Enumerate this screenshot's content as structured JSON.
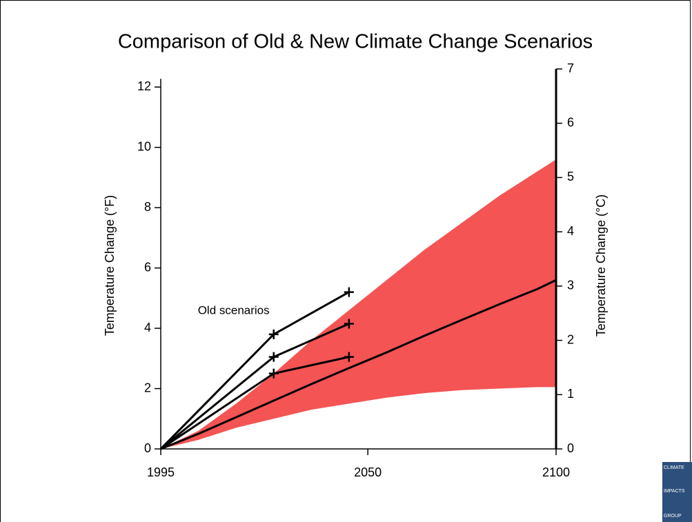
{
  "chart_data": {
    "type": "line",
    "title": "Comparison of Old & New Climate Change Scenarios",
    "y_label": "Temperature Change (°F)",
    "y2_label": "Temperature Change (°C)",
    "xlim": [
      1995,
      2100
    ],
    "xticks": [
      1995,
      2050,
      2100
    ],
    "ylim": [
      0,
      12.6
    ],
    "yticks": [
      0,
      2,
      4,
      6,
      8,
      10,
      12
    ],
    "y2lim": [
      0,
      7
    ],
    "y2ticks": [
      0,
      1,
      2,
      3,
      4,
      5,
      6,
      7
    ],
    "x": [
      1995,
      2005,
      2015,
      2025,
      2035,
      2045,
      2055,
      2065,
      2075,
      2085,
      2095,
      2100
    ],
    "band": {
      "color": "#f45454",
      "lower": [
        0,
        0.3,
        0.7,
        1.0,
        1.3,
        1.5,
        1.7,
        1.85,
        1.95,
        2.0,
        2.05,
        2.05
      ],
      "upper": [
        0,
        0.6,
        1.5,
        2.5,
        3.6,
        4.6,
        5.6,
        6.6,
        7.5,
        8.4,
        9.2,
        9.6
      ]
    },
    "series": [
      {
        "color": "#000000",
        "values": [
          0,
          0.5,
          1.05,
          1.6,
          2.15,
          2.68,
          3.2,
          3.75,
          4.28,
          4.8,
          5.3,
          5.6
        ]
      }
    ],
    "old_scenarios": {
      "label": "Old scenarios",
      "color": "#000000",
      "x": [
        1995,
        2025,
        2045
      ],
      "series": [
        {
          "values": [
            0,
            3.8,
            5.2
          ]
        },
        {
          "values": [
            0,
            3.05,
            4.15
          ]
        },
        {
          "values": [
            0,
            2.5,
            3.05
          ]
        }
      ]
    }
  },
  "logo": {
    "top": "CLIMATE",
    "middle": "IMPACTS",
    "bottom": "GROUP"
  }
}
